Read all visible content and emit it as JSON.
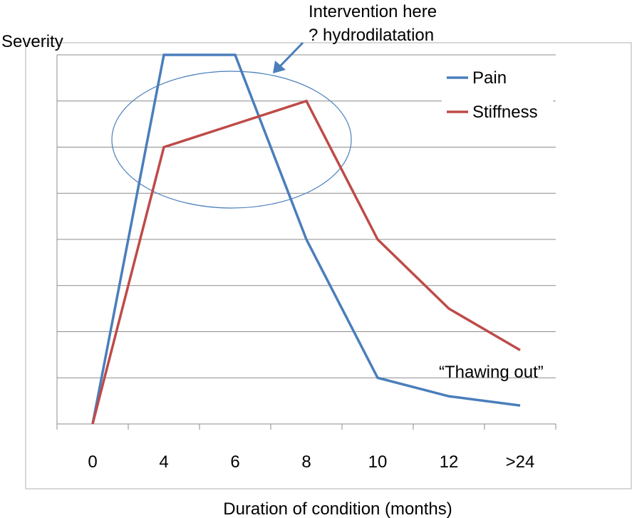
{
  "chart_data": {
    "type": "line",
    "title": "",
    "xlabel": "Duration of condition (months)",
    "ylabel": "Severity",
    "categories": [
      "0",
      "4",
      "6",
      "8",
      "10",
      "12",
      ">24"
    ],
    "ylim": [
      0,
      8
    ],
    "grid": true,
    "legend_position": "top-right",
    "series": [
      {
        "name": "Pain",
        "color": "#4a7ebb",
        "values": [
          0,
          8,
          8,
          4,
          1,
          0.6,
          0.4
        ]
      },
      {
        "name": "Stiffness",
        "color": "#be4b48",
        "values": [
          0,
          6,
          6.5,
          7,
          4,
          2.5,
          1.6
        ]
      }
    ],
    "annotations": [
      {
        "text_lines": [
          "Intervention here",
          "? hydrodilatation"
        ]
      },
      {
        "text": "“Thawing out”"
      }
    ]
  }
}
